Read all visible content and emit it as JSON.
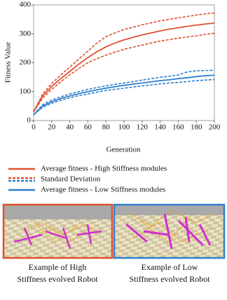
{
  "chart_data": {
    "type": "line",
    "x_label": "Generation",
    "y_label": "Fitness Value",
    "x": [
      0,
      10,
      20,
      30,
      40,
      50,
      60,
      70,
      80,
      90,
      100,
      110,
      120,
      130,
      140,
      150,
      160,
      170,
      180,
      190,
      200
    ],
    "xlim": [
      0,
      200
    ],
    "xticks": [
      0,
      20,
      40,
      60,
      80,
      100,
      120,
      140,
      160,
      180,
      200
    ],
    "ylim": [
      0,
      400
    ],
    "yticks": [
      0,
      100,
      200,
      300,
      400
    ],
    "std_label": "Standard Deviation",
    "series": [
      {
        "name": "Average fitness - High Stiffness modules",
        "color": "#e0502f",
        "values": [
          30,
          85,
          118,
          145,
          170,
          195,
          218,
          238,
          255,
          268,
          279,
          288,
          296,
          303,
          310,
          316,
          321,
          326,
          330,
          334,
          337
        ],
        "std_upper": [
          30,
          92,
          128,
          158,
          185,
          213,
          240,
          268,
          290,
          303,
          315,
          323,
          331,
          338,
          345,
          350,
          355,
          360,
          365,
          369,
          372
        ],
        "std_lower": [
          30,
          78,
          108,
          134,
          158,
          180,
          200,
          214,
          226,
          237,
          246,
          254,
          261,
          268,
          275,
          280,
          285,
          289,
          293,
          298,
          302
        ]
      },
      {
        "name": "Average fitness - Low Stiffness modules",
        "color": "#2f7fd0",
        "values": [
          20,
          50,
          65,
          76,
          85,
          93,
          100,
          106,
          112,
          117,
          122,
          126,
          130,
          134,
          138,
          141,
          145,
          148,
          152,
          155,
          157
        ],
        "std_upper": [
          20,
          55,
          71,
          82,
          92,
          100,
          108,
          114,
          120,
          125,
          130,
          135,
          140,
          145,
          150,
          153,
          158,
          168,
          172,
          173,
          174
        ],
        "std_lower": [
          20,
          46,
          60,
          70,
          79,
          86,
          92,
          98,
          104,
          108,
          112,
          116,
          120,
          123,
          127,
          130,
          132,
          135,
          138,
          140,
          142
        ]
      }
    ]
  },
  "panels": [
    {
      "caption": [
        "Example of High",
        "Stiffness evolved Robot"
      ]
    },
    {
      "caption": [
        "Example of Low",
        "Stiffness evolved Robot"
      ]
    }
  ]
}
